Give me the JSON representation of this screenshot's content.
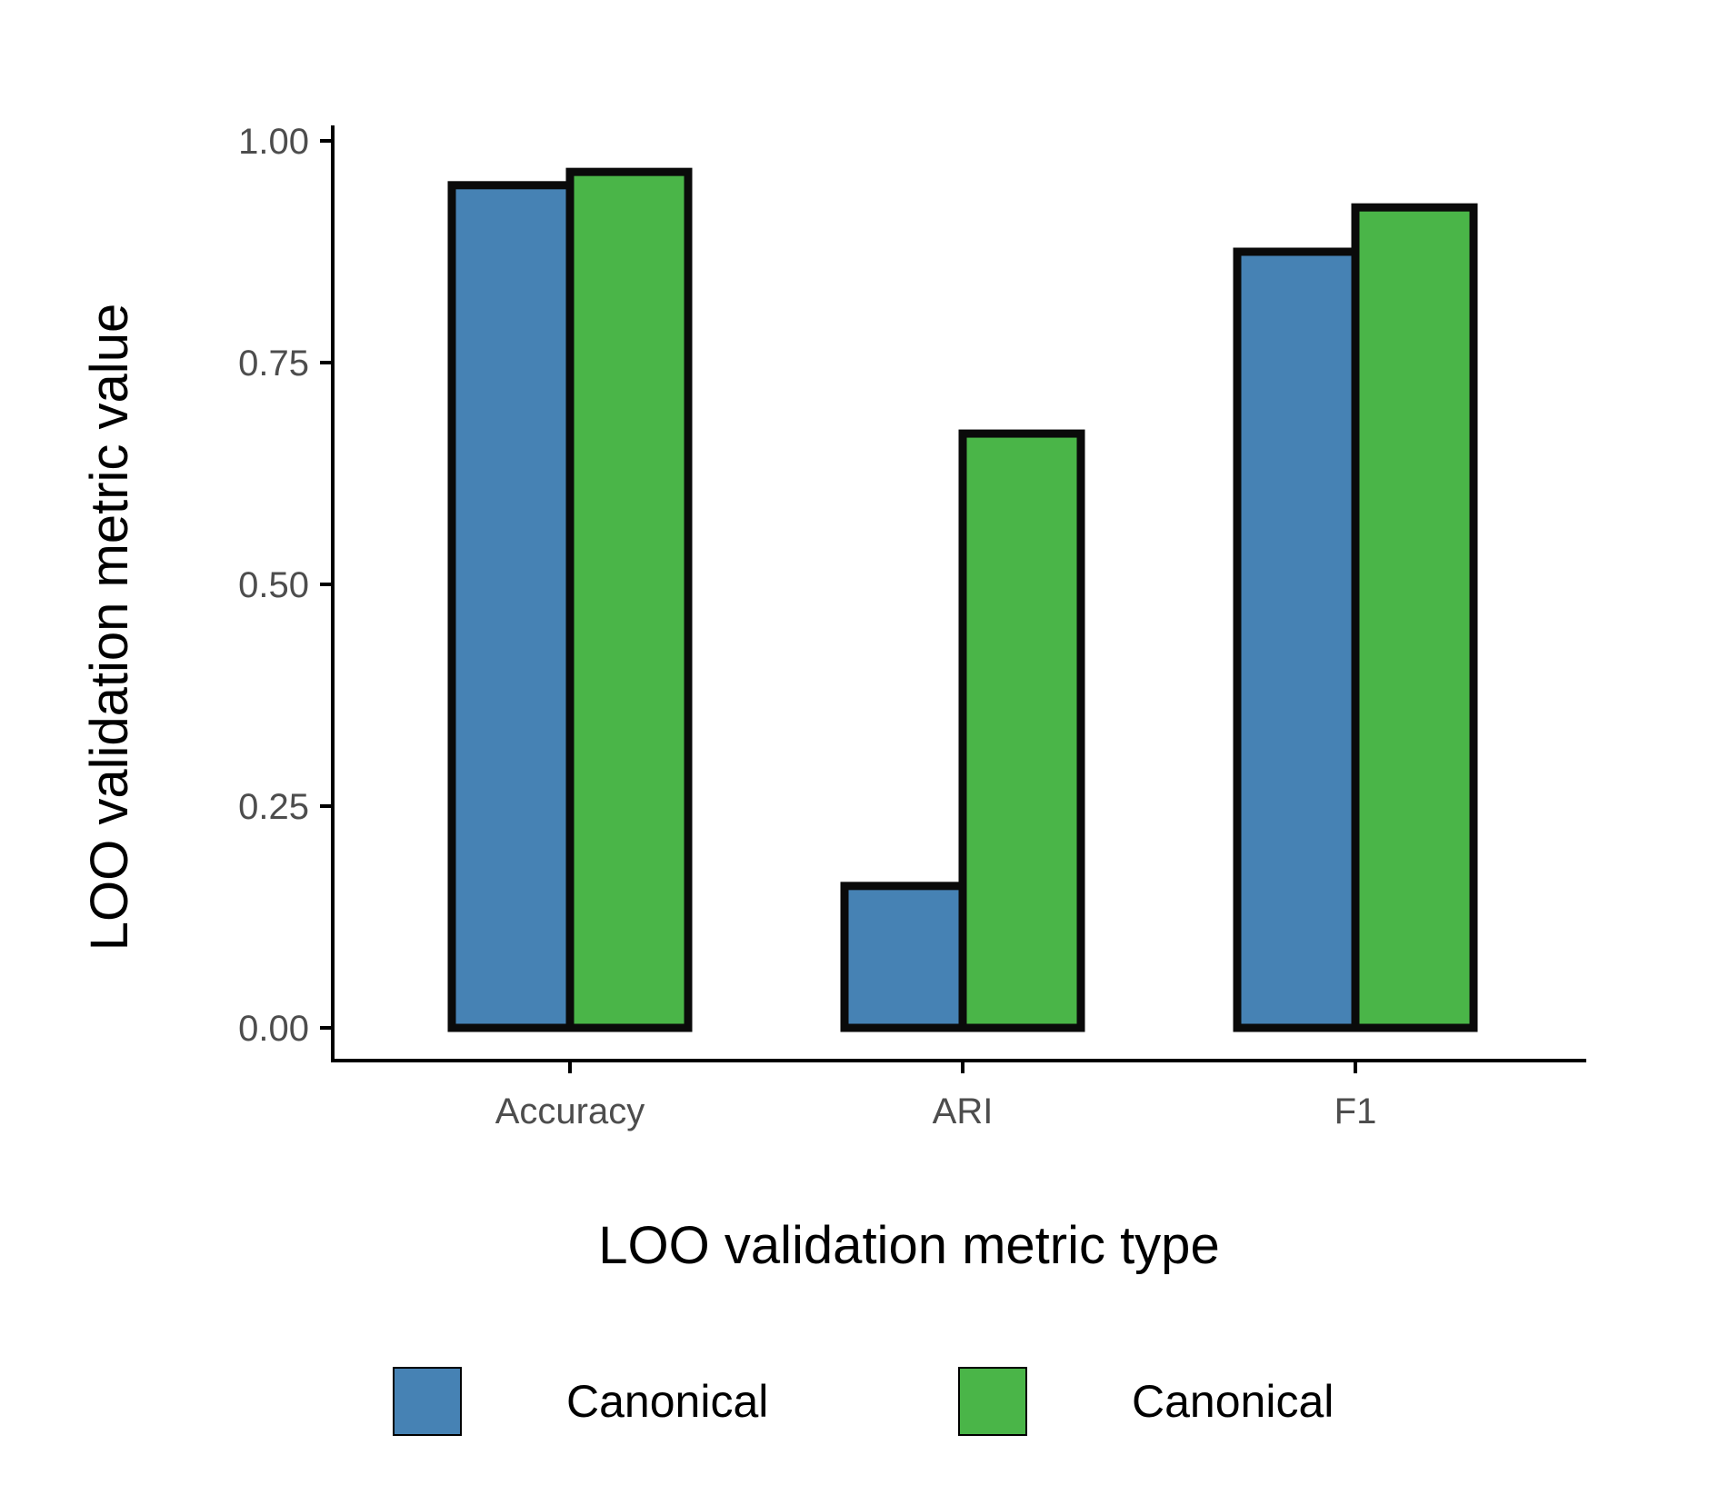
{
  "chart_data": {
    "type": "bar",
    "categories": [
      "Accuracy",
      "ARI",
      "F1"
    ],
    "series": [
      {
        "name": "Canonical",
        "color": "#4682b4",
        "values": [
          0.95,
          0.16,
          0.875
        ]
      },
      {
        "name": "Canonical",
        "color": "#4ab548",
        "values": [
          0.965,
          0.67,
          0.925
        ]
      }
    ],
    "xlabel": "LOO validation metric type",
    "ylabel": "LOO validation metric value",
    "ylim": [
      0,
      1
    ],
    "yticks": [
      "0.00",
      "0.25",
      "0.50",
      "0.75",
      "1.00"
    ],
    "grid": false,
    "legend_position": "bottom"
  }
}
